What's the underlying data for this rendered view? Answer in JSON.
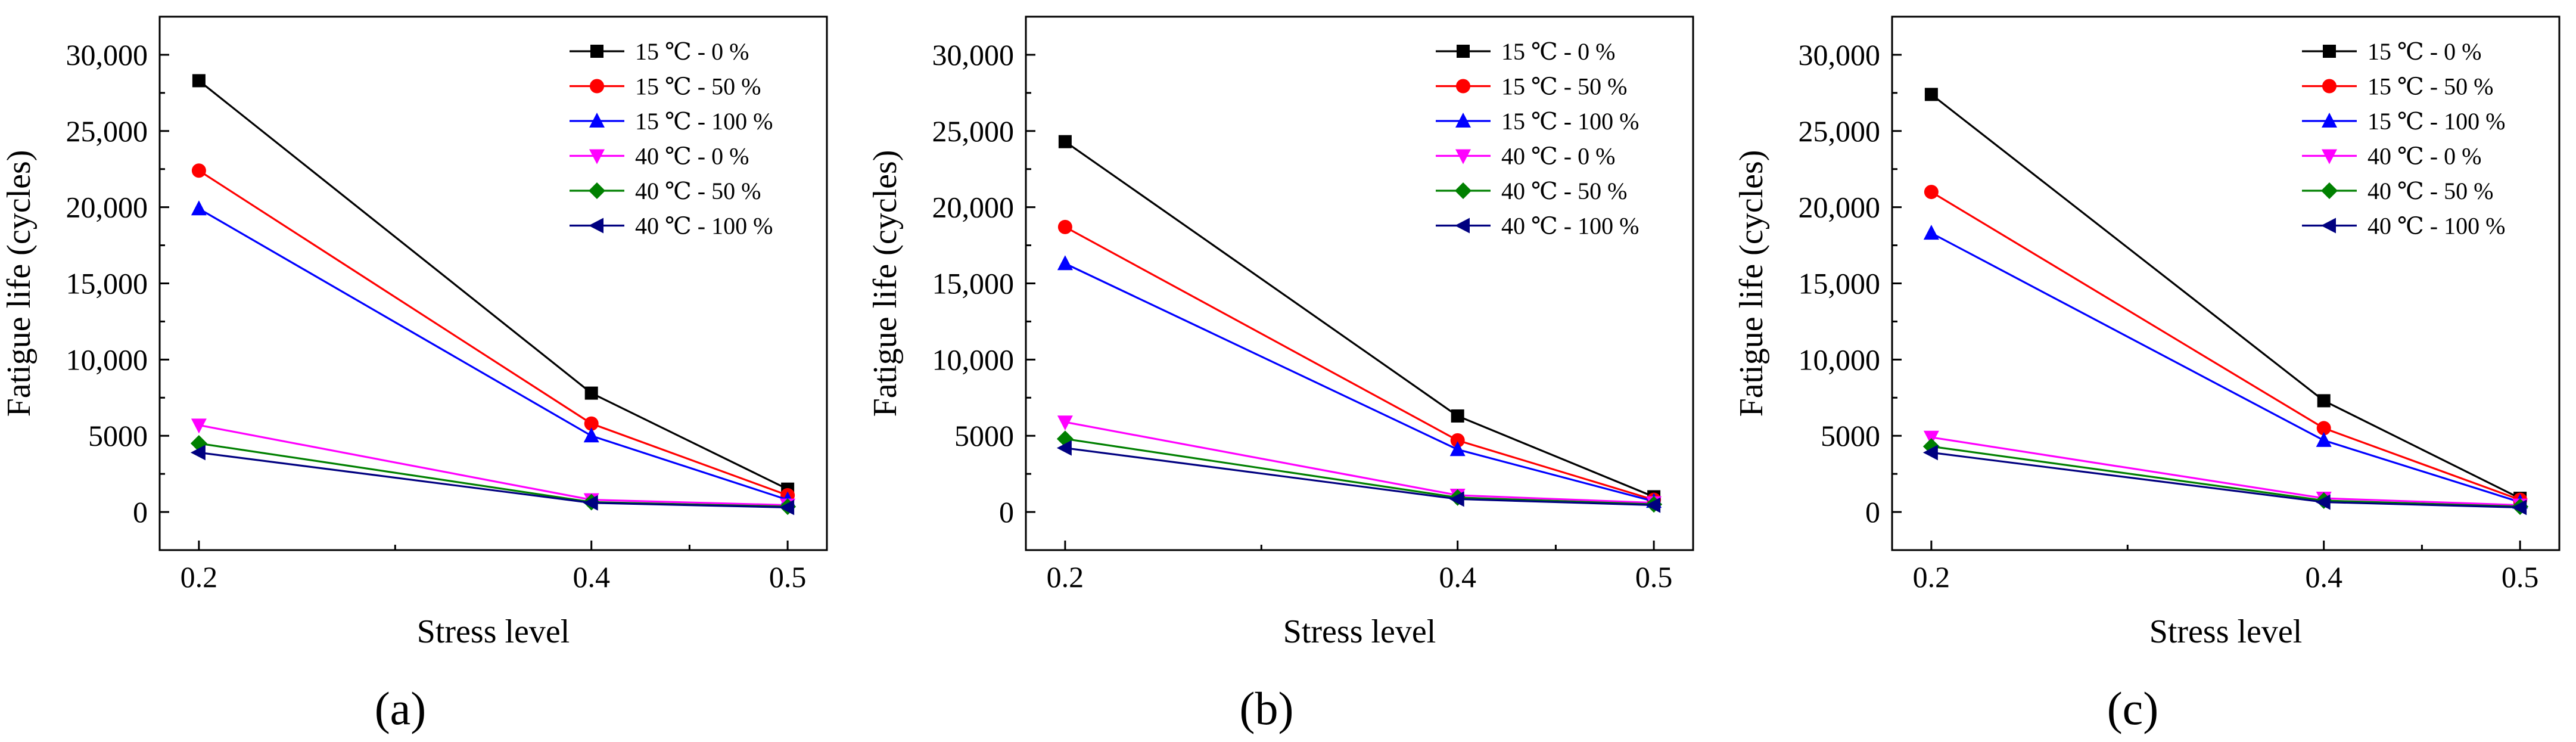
{
  "chart_data": [
    {
      "type": "line",
      "panel_label": "(a)",
      "xlabel": "Stress level",
      "ylabel": "Fatigue life (cycles)",
      "x": [
        0.2,
        0.4,
        0.5
      ],
      "x_tick_labels": [
        "0.2",
        "0.4",
        "0.5"
      ],
      "xlim": [
        0.18,
        0.52
      ],
      "ylim": [
        -2500,
        32500
      ],
      "y_ticks": [
        0,
        5000,
        10000,
        15000,
        20000,
        25000,
        30000
      ],
      "y_tick_labels": [
        "0",
        "5000",
        "10,000",
        "15,000",
        "20,000",
        "25,000",
        "30,000"
      ],
      "legend_position": "top-right",
      "series": [
        {
          "name": "15 ℃ - 0 %",
          "color": "#000000",
          "marker": "square",
          "values": [
            28300,
            7800,
            1500
          ]
        },
        {
          "name": "15 ℃ - 50 %",
          "color": "#ff0000",
          "marker": "circle",
          "values": [
            22400,
            5800,
            1100
          ]
        },
        {
          "name": "15 ℃ - 100 %",
          "color": "#0000ff",
          "marker": "triangle-up",
          "values": [
            19900,
            5000,
            800
          ]
        },
        {
          "name": "40 ℃ - 0 %",
          "color": "#ff00ff",
          "marker": "triangle-down",
          "values": [
            5700,
            800,
            450
          ]
        },
        {
          "name": "40 ℃ - 50 %",
          "color": "#008000",
          "marker": "diamond",
          "values": [
            4500,
            650,
            350
          ]
        },
        {
          "name": "40 ℃ - 100 %",
          "color": "#000080",
          "marker": "triangle-left",
          "values": [
            3900,
            600,
            300
          ]
        }
      ]
    },
    {
      "type": "line",
      "panel_label": "(b)",
      "xlabel": "Stress level",
      "ylabel": "Fatigue life (cycles)",
      "x": [
        0.2,
        0.4,
        0.5
      ],
      "x_tick_labels": [
        "0.2",
        "0.4",
        "0.5"
      ],
      "xlim": [
        0.18,
        0.52
      ],
      "ylim": [
        -2500,
        32500
      ],
      "y_ticks": [
        0,
        5000,
        10000,
        15000,
        20000,
        25000,
        30000
      ],
      "y_tick_labels": [
        "0",
        "5000",
        "10,000",
        "15,000",
        "20,000",
        "25,000",
        "30,000"
      ],
      "legend_position": "top-right",
      "series": [
        {
          "name": "15 ℃ - 0 %",
          "color": "#000000",
          "marker": "square",
          "values": [
            24300,
            6300,
            1000
          ]
        },
        {
          "name": "15 ℃ - 50 %",
          "color": "#ff0000",
          "marker": "circle",
          "values": [
            18700,
            4700,
            800
          ]
        },
        {
          "name": "15 ℃ - 100 %",
          "color": "#0000ff",
          "marker": "triangle-up",
          "values": [
            16300,
            4100,
            700
          ]
        },
        {
          "name": "40 ℃ - 0 %",
          "color": "#ff00ff",
          "marker": "triangle-down",
          "values": [
            5900,
            1100,
            600
          ]
        },
        {
          "name": "40 ℃ - 50 %",
          "color": "#008000",
          "marker": "diamond",
          "values": [
            4800,
            950,
            500
          ]
        },
        {
          "name": "40 ℃ - 100 %",
          "color": "#000080",
          "marker": "triangle-left",
          "values": [
            4200,
            850,
            450
          ]
        }
      ]
    },
    {
      "type": "line",
      "panel_label": "(c)",
      "xlabel": "Stress level",
      "ylabel": "Fatigue life (cycles)",
      "x": [
        0.2,
        0.4,
        0.5
      ],
      "x_tick_labels": [
        "0.2",
        "0.4",
        "0.5"
      ],
      "xlim": [
        0.18,
        0.52
      ],
      "ylim": [
        -2500,
        32500
      ],
      "y_ticks": [
        0,
        5000,
        10000,
        15000,
        20000,
        25000,
        30000
      ],
      "y_tick_labels": [
        "0",
        "5000",
        "10,000",
        "15,000",
        "20,000",
        "25,000",
        "30,000"
      ],
      "legend_position": "top-right",
      "series": [
        {
          "name": "15 ℃ - 0 %",
          "color": "#000000",
          "marker": "square",
          "values": [
            27400,
            7300,
            900
          ]
        },
        {
          "name": "15 ℃ - 50 %",
          "color": "#ff0000",
          "marker": "circle",
          "values": [
            21000,
            5500,
            800
          ]
        },
        {
          "name": "15 ℃ - 100 %",
          "color": "#0000ff",
          "marker": "triangle-up",
          "values": [
            18300,
            4700,
            650
          ]
        },
        {
          "name": "40 ℃ - 0 %",
          "color": "#ff00ff",
          "marker": "triangle-down",
          "values": [
            4900,
            900,
            450
          ]
        },
        {
          "name": "40 ℃ - 50 %",
          "color": "#008000",
          "marker": "diamond",
          "values": [
            4300,
            750,
            350
          ]
        },
        {
          "name": "40 ℃ - 100 %",
          "color": "#000080",
          "marker": "triangle-left",
          "values": [
            3900,
            650,
            300
          ]
        }
      ]
    }
  ]
}
